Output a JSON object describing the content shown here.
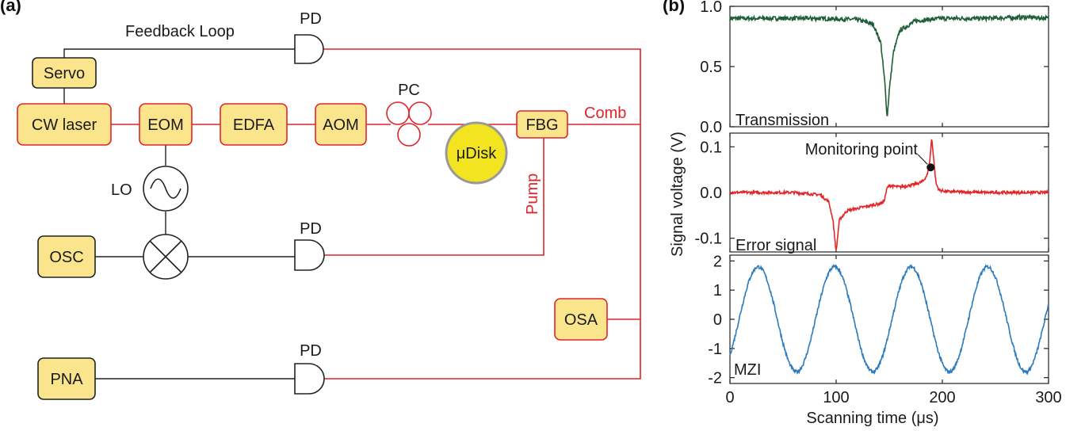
{
  "panel_a": {
    "label": "(a)",
    "feedback_loop": "Feedback Loop",
    "servo": "Servo",
    "cw_laser": "CW laser",
    "eom": "EOM",
    "edfa": "EDFA",
    "aom": "AOM",
    "pc": "PC",
    "fbg": "FBG",
    "comb": "Comb",
    "udisk": "μDisk",
    "pump": "Pump",
    "lo": "LO",
    "osc": "OSC",
    "osa": "OSA",
    "pna": "PNA",
    "pd_top": "PD",
    "pd_mid": "PD",
    "pd_bottom": "PD",
    "colors": {
      "red": "#e0242a",
      "box_fill": "#fae58c",
      "disk_fill": "#f2e51f"
    }
  },
  "panel_b": {
    "label": "(b)",
    "ylabel": "Signal voltage (V)",
    "xlabel": "Scanning time (μs)",
    "colors": {
      "transmission": "#1f5e36",
      "error": "#e32728",
      "mzi": "#2b7bbd"
    }
  },
  "chart_data": [
    {
      "type": "line",
      "title": "Transmission",
      "xlim": [
        0,
        300
      ],
      "ylim": [
        0.0,
        1.0
      ],
      "yticks": [
        "0.0",
        "0.5",
        "1.0"
      ],
      "series": [
        {
          "x": [
            0,
            40,
            80,
            120,
            135,
            142,
            146,
            148,
            150,
            154,
            160,
            175,
            200,
            240,
            280,
            300
          ],
          "y": [
            0.9,
            0.9,
            0.9,
            0.89,
            0.85,
            0.7,
            0.35,
            0.07,
            0.3,
            0.62,
            0.8,
            0.88,
            0.9,
            0.9,
            0.91,
            0.9
          ]
        }
      ]
    },
    {
      "type": "line",
      "title": "Error signal",
      "annotation": "Monitoring point",
      "annotation_point": [
        189,
        0.055
      ],
      "xlim": [
        0,
        300
      ],
      "ylim": [
        -0.13,
        0.13
      ],
      "yticks": [
        "-0.1",
        "0.0",
        "0.1"
      ],
      "series": [
        {
          "x": [
            0,
            60,
            85,
            93,
            97,
            100,
            103,
            110,
            125,
            140,
            145,
            148,
            150,
            160,
            175,
            182,
            186,
            188,
            190,
            192,
            194,
            197,
            205,
            240,
            300
          ],
          "y": [
            0.0,
            0.0,
            -0.005,
            -0.02,
            -0.06,
            -0.13,
            -0.06,
            -0.04,
            -0.032,
            -0.025,
            -0.02,
            0.01,
            0.015,
            0.012,
            0.018,
            0.025,
            0.04,
            0.065,
            0.12,
            0.07,
            0.02,
            0.005,
            0.002,
            0.0,
            0.0
          ]
        }
      ]
    },
    {
      "type": "line",
      "title": "MZI",
      "xlim": [
        0,
        300
      ],
      "ylim": [
        -2.2,
        2.2
      ],
      "xticks": [
        "0",
        "100",
        "200",
        "300"
      ],
      "yticks": [
        "-2",
        "-1",
        "0",
        "1",
        "2"
      ],
      "series": [
        {
          "name": "",
          "function": "sine",
          "amplitude": 1.8,
          "period": 72,
          "phase_deg": -43
        }
      ]
    }
  ]
}
